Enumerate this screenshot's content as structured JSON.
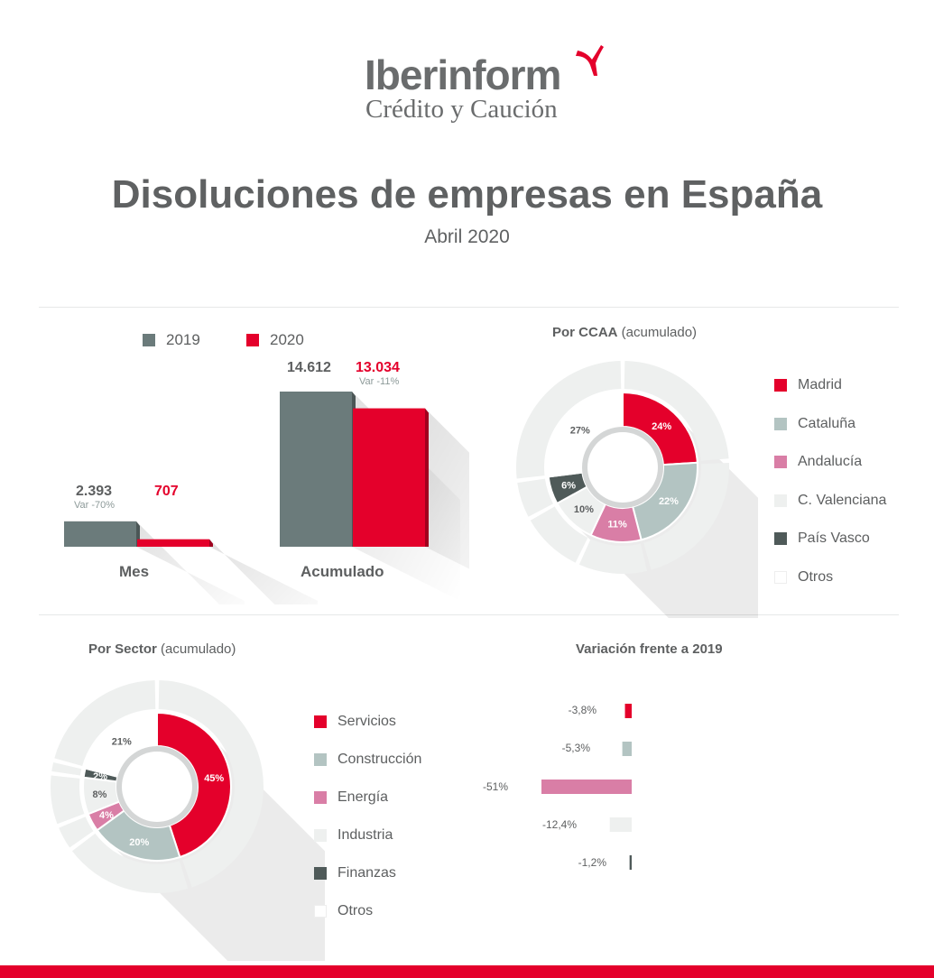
{
  "logo": {
    "name": "Iberinform",
    "tagline": "Crédito y Caución"
  },
  "header": {
    "title": "Disoluciones de empresas en España",
    "subtitle": "Abril 2020"
  },
  "colors": {
    "red": "#e4002b",
    "gray": "#6b7b7b",
    "teal": "#b3c4c2",
    "pink": "#d97ea6",
    "light": "#eef0ef",
    "dark": "#4f5a59",
    "white": "#ffffff"
  },
  "bars": {
    "legend": [
      {
        "label": "2019",
        "color": "#6b7b7b"
      },
      {
        "label": "2020",
        "color": "#e4002b"
      }
    ],
    "groups": [
      {
        "label": "Mes",
        "v2019": "2.393",
        "v2020": "707",
        "var": "Var -70%",
        "n2019": 2393,
        "n2020": 707
      },
      {
        "label": "Acumulado",
        "v2019": "14.612",
        "v2020": "13.034",
        "var": "Var -11%",
        "n2019": 14612,
        "n2020": 13034
      }
    ]
  },
  "ccaa": {
    "title_bold": "Por CCAA",
    "title_rest": " (acumulado)",
    "legend": [
      {
        "label": "Madrid",
        "color": "#e4002b"
      },
      {
        "label": "Cataluña",
        "color": "#b3c4c2"
      },
      {
        "label": "Andalucía",
        "color": "#d97ea6"
      },
      {
        "label": "C. Valenciana",
        "color": "#eef0ef"
      },
      {
        "label": "País Vasco",
        "color": "#4f5a59"
      },
      {
        "label": "Otros",
        "color": "#ffffff"
      }
    ]
  },
  "sector": {
    "title_bold": "Por Sector",
    "title_rest": " (acumulado)",
    "legend": [
      {
        "label": "Servicios",
        "color": "#e4002b"
      },
      {
        "label": "Construcción",
        "color": "#b3c4c2"
      },
      {
        "label": "Energía",
        "color": "#d97ea6"
      },
      {
        "label": "Industria",
        "color": "#eef0ef"
      },
      {
        "label": "Finanzas",
        "color": "#4f5a59"
      },
      {
        "label": "Otros",
        "color": "#ffffff"
      }
    ]
  },
  "variation": {
    "title": "Variación frente a 2019",
    "items": [
      {
        "label": "-3,8%",
        "value": -3.8,
        "color": "#e4002b"
      },
      {
        "label": "-5,3%",
        "value": -5.3,
        "color": "#b3c4c2"
      },
      {
        "label": "-51%",
        "value": -51,
        "color": "#d97ea6"
      },
      {
        "label": "-12,4%",
        "value": -12.4,
        "color": "#eef0ef"
      },
      {
        "label": "-1,2%",
        "value": -1.2,
        "color": "#4f5a59"
      }
    ]
  },
  "chart_data": [
    {
      "type": "bar",
      "categories": [
        "Mes",
        "Acumulado"
      ],
      "series": [
        {
          "name": "2019",
          "values": [
            2393,
            14612
          ]
        },
        {
          "name": "2020",
          "values": [
            707,
            13034
          ]
        }
      ],
      "annotations": [
        "Var -70%",
        "Var -11%"
      ]
    },
    {
      "type": "pie",
      "title": "Por CCAA (acumulado)",
      "labels": [
        "Madrid",
        "Cataluña",
        "Andalucía",
        "C. Valenciana",
        "País Vasco",
        "Otros"
      ],
      "values": [
        24,
        22,
        11,
        10,
        6,
        27
      ],
      "value_labels": [
        "24%",
        "22%",
        "11%",
        "10%",
        "6%",
        "27%"
      ]
    },
    {
      "type": "pie",
      "title": "Por Sector (acumulado)",
      "labels": [
        "Servicios",
        "Construcción",
        "Energía",
        "Industria",
        "Finanzas",
        "Otros"
      ],
      "values": [
        45,
        20,
        4,
        8,
        2,
        21
      ],
      "value_labels": [
        "45%",
        "20%",
        "4%",
        "8%",
        "2%",
        "21%"
      ]
    },
    {
      "type": "bar",
      "title": "Variación frente a 2019",
      "categories": [
        "Servicios",
        "Construcción",
        "Energía",
        "Industria",
        "Finanzas"
      ],
      "values": [
        -3.8,
        -5.3,
        -51,
        -12.4,
        -1.2
      ],
      "value_labels": [
        "-3,8%",
        "-5,3%",
        "-51%",
        "-12,4%",
        "-1,2%"
      ]
    }
  ]
}
